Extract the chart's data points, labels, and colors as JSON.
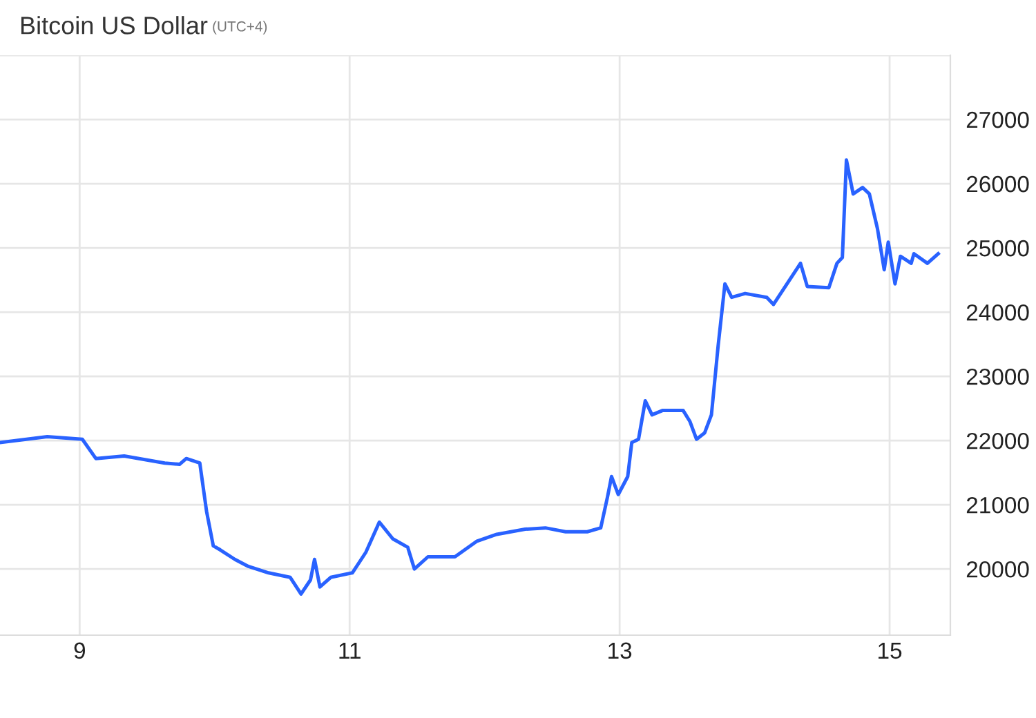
{
  "chart_data": {
    "type": "line",
    "title": "Bitcoin US Dollar",
    "subtitle": "(UTC+4)",
    "x": [
      8.41,
      8.76,
      9.02,
      9.12,
      9.33,
      9.63,
      9.74,
      9.79,
      9.89,
      9.94,
      9.99,
      10.04,
      10.15,
      10.25,
      10.4,
      10.56,
      10.64,
      10.71,
      10.74,
      10.78,
      10.86,
      11.02,
      11.12,
      11.22,
      11.32,
      11.43,
      11.48,
      11.58,
      11.78,
      11.94,
      12.09,
      12.3,
      12.45,
      12.6,
      12.76,
      12.86,
      12.91,
      12.94,
      12.99,
      13.06,
      13.09,
      13.14,
      13.19,
      13.24,
      13.32,
      13.47,
      13.52,
      13.57,
      13.63,
      13.68,
      13.73,
      13.78,
      13.83,
      13.93,
      14.09,
      14.14,
      14.24,
      14.34,
      14.39,
      14.55,
      14.61,
      14.65,
      14.68,
      14.73,
      14.8,
      14.85,
      14.91,
      14.96,
      14.99,
      15.04,
      15.08,
      15.16,
      15.18,
      15.28,
      15.36
    ],
    "series": [
      {
        "color": "#2962ff",
        "values": [
          21970,
          22060,
          22020,
          21720,
          21760,
          21650,
          21630,
          21720,
          21650,
          20900,
          20360,
          20300,
          20150,
          20040,
          19940,
          19870,
          19610,
          19830,
          20150,
          19720,
          19870,
          19940,
          20260,
          20730,
          20470,
          20340,
          20000,
          20190,
          20190,
          20430,
          20540,
          20620,
          20640,
          20580,
          20580,
          20640,
          21120,
          21440,
          21160,
          21440,
          21970,
          22020,
          22620,
          22400,
          22470,
          22470,
          22300,
          22020,
          22120,
          22400,
          23480,
          24440,
          24230,
          24290,
          24230,
          24120,
          24440,
          24760,
          24400,
          24380,
          24760,
          24850,
          26370,
          25840,
          25940,
          25840,
          25300,
          24660,
          25090,
          24440,
          24870,
          24760,
          24910,
          24760,
          24910
        ]
      }
    ],
    "xlim": [
      8.41,
      15.45
    ],
    "xticks": [
      9,
      11,
      13,
      15
    ],
    "ylim": [
      18970,
      28000
    ],
    "yticks": [
      20000,
      21000,
      22000,
      23000,
      24000,
      25000,
      26000,
      27000
    ],
    "grid": true,
    "marker": "none",
    "line_style": "solid"
  }
}
